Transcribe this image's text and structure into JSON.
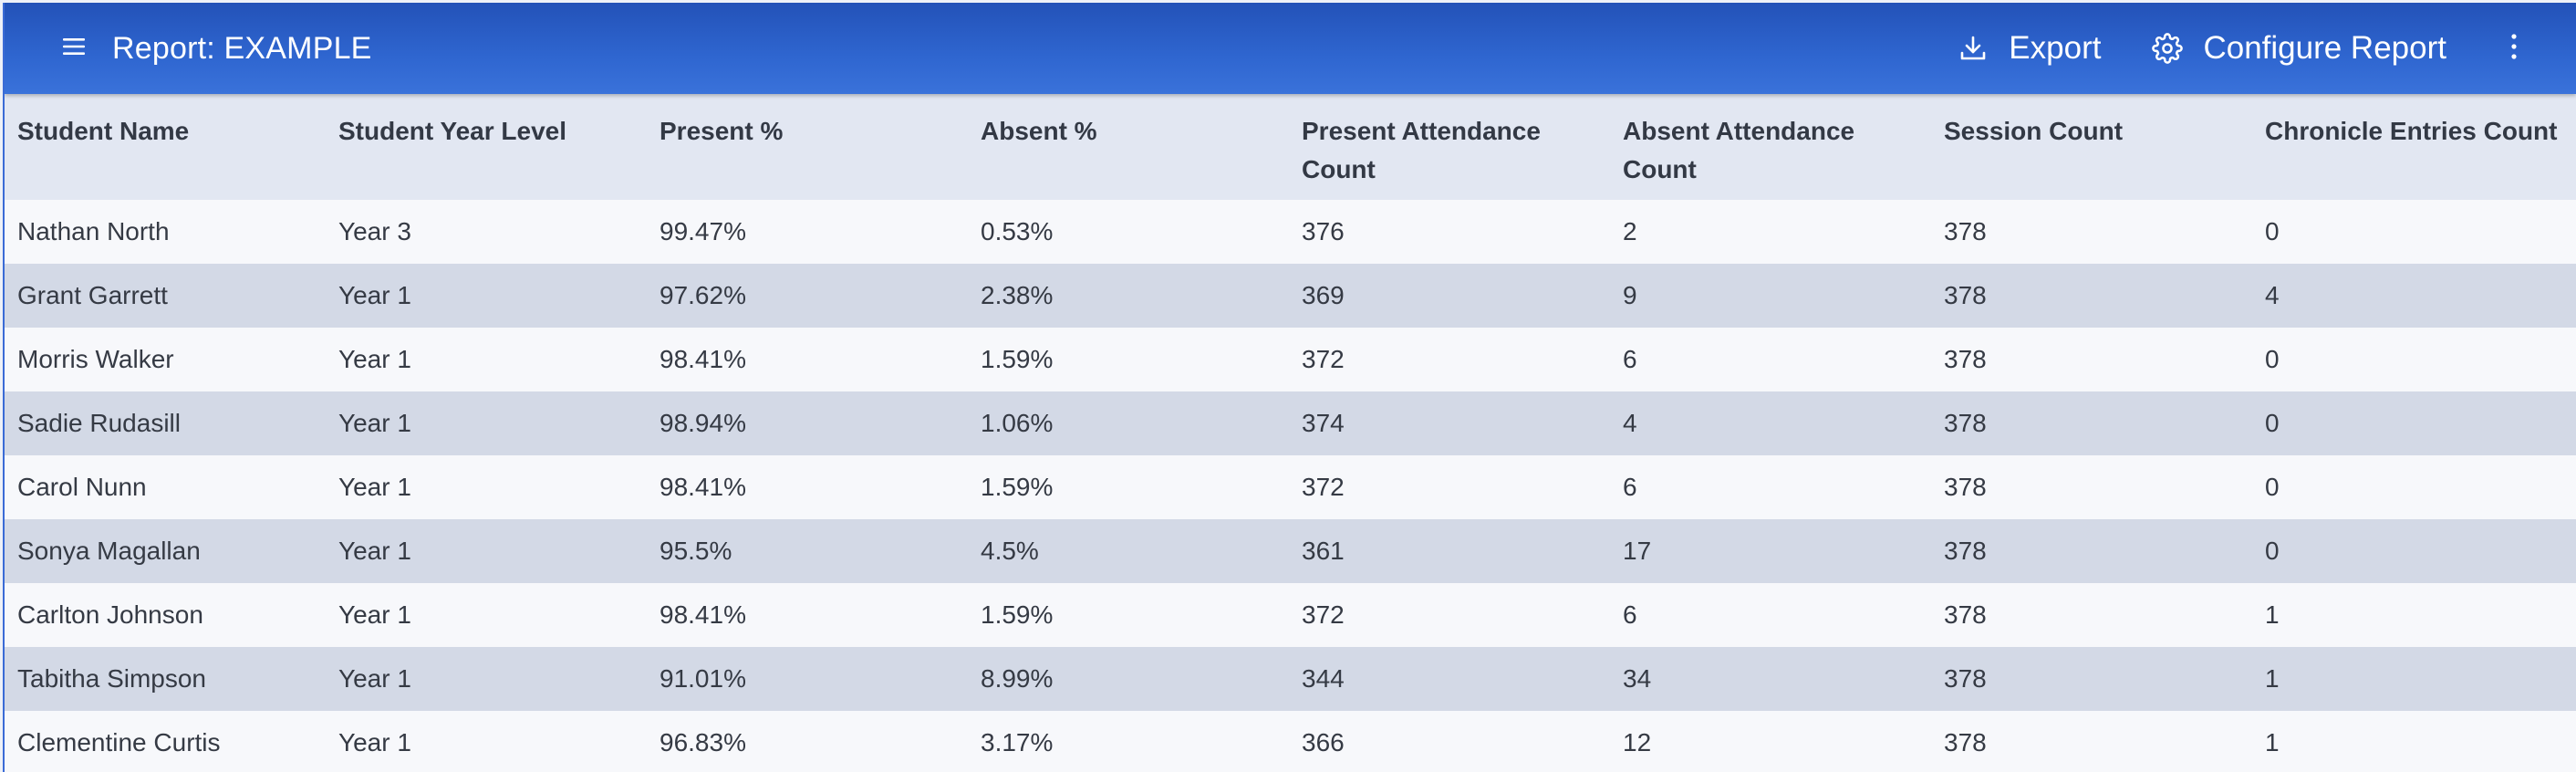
{
  "appbar": {
    "title": "Report: EXAMPLE",
    "export_label": "Export",
    "configure_label": "Configure Report",
    "icons": {
      "menu": "hamburger-menu-icon",
      "export": "download-icon",
      "configure": "gear-icon",
      "more": "more-vertical-icon"
    },
    "colors": {
      "bar": "#2f66d0",
      "text": "#ffffff"
    }
  },
  "table": {
    "columns": [
      "Student Name",
      "Student Year Level",
      "Present %",
      "Absent %",
      "Present Attendance Count",
      "Absent Attendance Count",
      "Session Count",
      "Chronicle Entries Count"
    ],
    "rows": [
      [
        "Nathan North",
        "Year 3",
        "99.47%",
        "0.53%",
        "376",
        "2",
        "378",
        "0"
      ],
      [
        "Grant Garrett",
        "Year 1",
        "97.62%",
        "2.38%",
        "369",
        "9",
        "378",
        "4"
      ],
      [
        "Morris Walker",
        "Year 1",
        "98.41%",
        "1.59%",
        "372",
        "6",
        "378",
        "0"
      ],
      [
        "Sadie Rudasill",
        "Year 1",
        "98.94%",
        "1.06%",
        "374",
        "4",
        "378",
        "0"
      ],
      [
        "Carol Nunn",
        "Year 1",
        "98.41%",
        "1.59%",
        "372",
        "6",
        "378",
        "0"
      ],
      [
        "Sonya Magallan",
        "Year 1",
        "95.5%",
        "4.5%",
        "361",
        "17",
        "378",
        "0"
      ],
      [
        "Carlton Johnson",
        "Year 1",
        "98.41%",
        "1.59%",
        "372",
        "6",
        "378",
        "1"
      ],
      [
        "Tabitha Simpson",
        "Year 1",
        "91.01%",
        "8.99%",
        "344",
        "34",
        "378",
        "1"
      ],
      [
        "Clementine Curtis",
        "Year 1",
        "96.83%",
        "3.17%",
        "366",
        "12",
        "378",
        "1"
      ]
    ],
    "colors": {
      "header_bg": "#e2e7f2",
      "row_odd": "#f7f8fb",
      "row_even": "#d3d9e6"
    }
  }
}
